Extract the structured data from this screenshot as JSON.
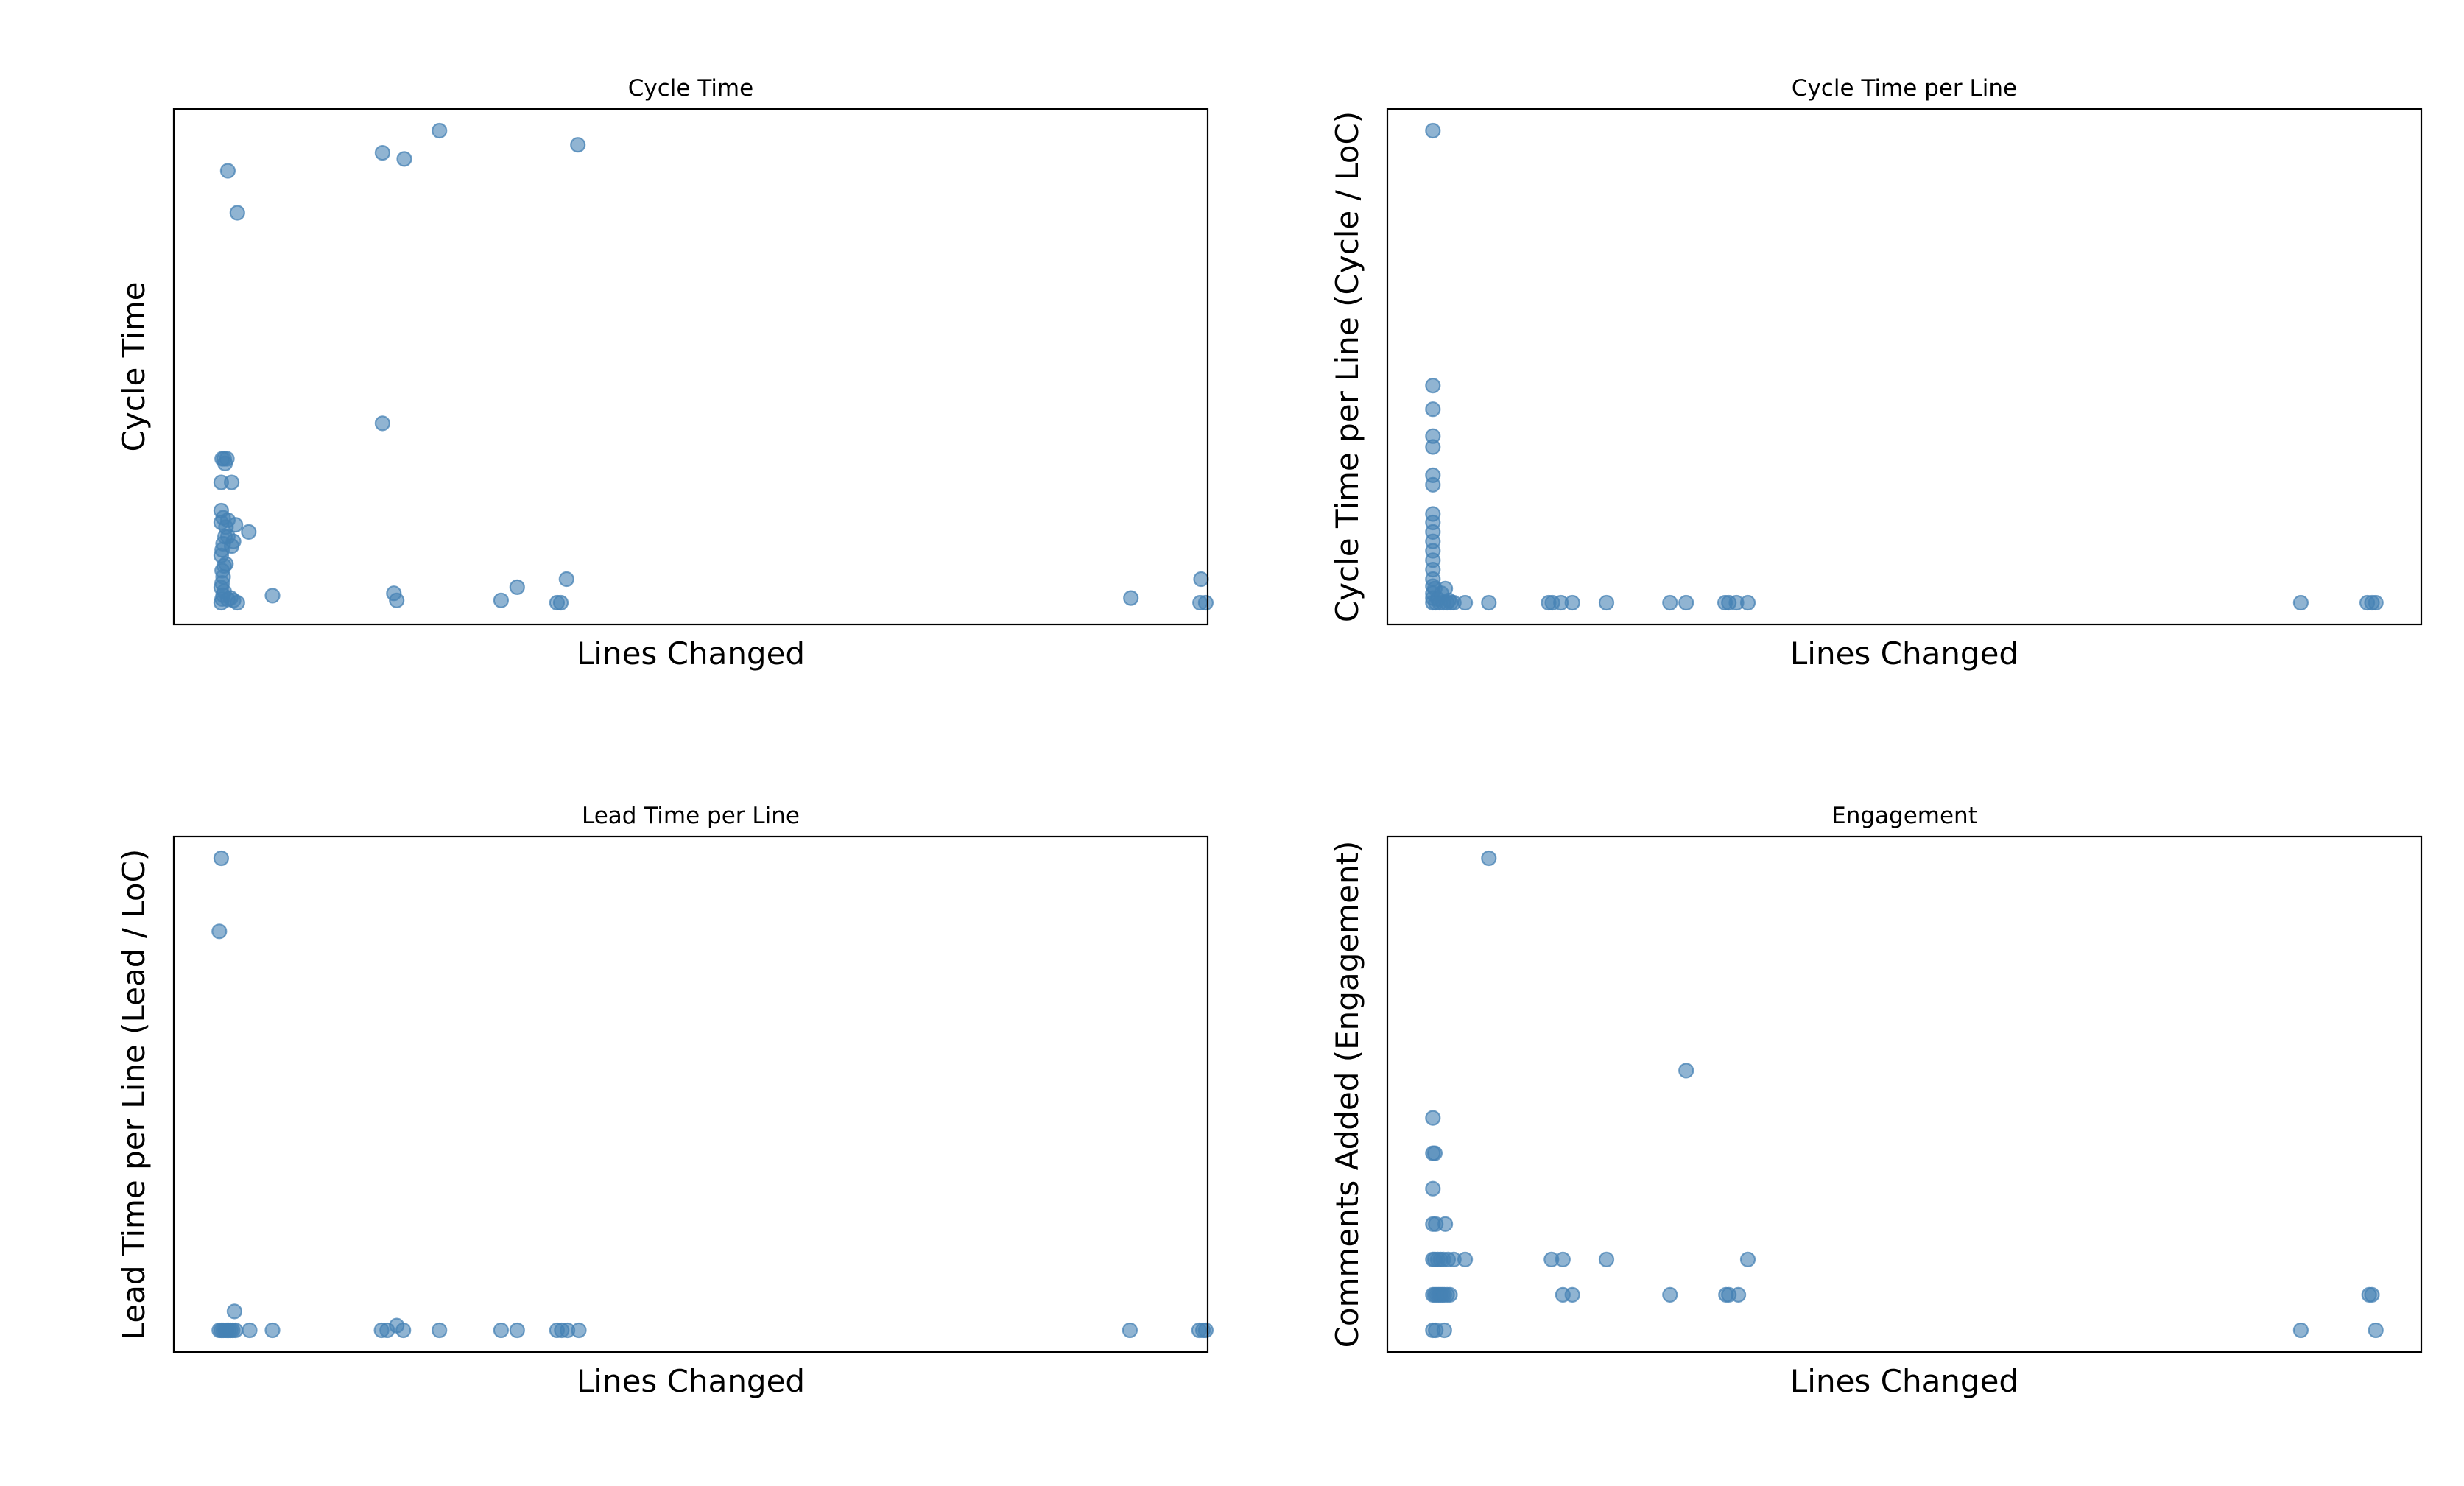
{
  "style": {
    "marker_fill": "#4682b4",
    "marker_opacity": 0.6,
    "frame_color": "#000000"
  },
  "chart_data": [
    {
      "type": "scatter",
      "title": "Cycle Time",
      "xlabel": "Lines Changed",
      "ylabel": "Cycle Time",
      "xlim": [
        -0.045,
        1.045
      ],
      "ylim": [
        -0.046,
        1.046
      ],
      "grid": false,
      "ticks": false,
      "points": [
        [
          0.005,
          0.0
        ],
        [
          0.006,
          0.008
        ],
        [
          0.007,
          0.016
        ],
        [
          0.008,
          0.024
        ],
        [
          0.005,
          0.032
        ],
        [
          0.006,
          0.042
        ],
        [
          0.007,
          0.055
        ],
        [
          0.006,
          0.068
        ],
        [
          0.008,
          0.078
        ],
        [
          0.01,
          0.082
        ],
        [
          0.005,
          0.1
        ],
        [
          0.006,
          0.112
        ],
        [
          0.007,
          0.125
        ],
        [
          0.009,
          0.14
        ],
        [
          0.012,
          0.14
        ],
        [
          0.018,
          0.13
        ],
        [
          0.016,
          0.12
        ],
        [
          0.01,
          0.16
        ],
        [
          0.005,
          0.17
        ],
        [
          0.007,
          0.18
        ],
        [
          0.012,
          0.175
        ],
        [
          0.02,
          0.165
        ],
        [
          0.005,
          0.255
        ],
        [
          0.006,
          0.305
        ],
        [
          0.008,
          0.305
        ],
        [
          0.009,
          0.295
        ],
        [
          0.011,
          0.305
        ],
        [
          0.005,
          0.195
        ],
        [
          0.016,
          0.255
        ],
        [
          0.012,
          0.007
        ],
        [
          0.018,
          0.005
        ],
        [
          0.015,
          0.01
        ],
        [
          0.022,
          0.0
        ],
        [
          0.034,
          0.15
        ],
        [
          0.059,
          0.015
        ],
        [
          0.012,
          0.915
        ],
        [
          0.022,
          0.826
        ],
        [
          0.175,
          0.38
        ],
        [
          0.175,
          0.953
        ],
        [
          0.198,
          0.94
        ],
        [
          0.235,
          1.0
        ],
        [
          0.381,
          0.97
        ],
        [
          0.187,
          0.02
        ],
        [
          0.19,
          0.005
        ],
        [
          0.3,
          0.005
        ],
        [
          0.317,
          0.033
        ],
        [
          0.359,
          0.0
        ],
        [
          0.363,
          0.0
        ],
        [
          0.369,
          0.05
        ],
        [
          0.964,
          0.01
        ],
        [
          1.038,
          0.05
        ],
        [
          1.037,
          0.0
        ],
        [
          1.043,
          0.0
        ]
      ]
    },
    {
      "type": "scatter",
      "title": "Cycle Time per Line",
      "xlabel": "Lines Changed",
      "ylabel": "Cycle Time per Line (Cycle /  LoC)",
      "xlim": [
        -0.045,
        1.045
      ],
      "ylim": [
        -0.046,
        1.046
      ],
      "grid": false,
      "ticks": false,
      "points": [
        [
          0.003,
          1.0
        ],
        [
          0.003,
          0.46
        ],
        [
          0.003,
          0.41
        ],
        [
          0.003,
          0.353
        ],
        [
          0.003,
          0.33
        ],
        [
          0.003,
          0.27
        ],
        [
          0.003,
          0.25
        ],
        [
          0.003,
          0.188
        ],
        [
          0.003,
          0.17
        ],
        [
          0.003,
          0.15
        ],
        [
          0.003,
          0.13
        ],
        [
          0.003,
          0.11
        ],
        [
          0.003,
          0.09
        ],
        [
          0.003,
          0.07
        ],
        [
          0.003,
          0.05
        ],
        [
          0.003,
          0.035
        ],
        [
          0.003,
          0.02
        ],
        [
          0.003,
          0.01
        ],
        [
          0.003,
          0.0
        ],
        [
          0.005,
          0.03
        ],
        [
          0.006,
          0.0
        ],
        [
          0.008,
          0.008
        ],
        [
          0.01,
          0.0
        ],
        [
          0.012,
          0.02
        ],
        [
          0.014,
          0.0
        ],
        [
          0.016,
          0.03
        ],
        [
          0.018,
          0.0
        ],
        [
          0.02,
          0.005
        ],
        [
          0.022,
          0.0
        ],
        [
          0.025,
          0.0
        ],
        [
          0.037,
          0.0
        ],
        [
          0.062,
          0.0
        ],
        [
          0.125,
          0.0
        ],
        [
          0.129,
          0.0
        ],
        [
          0.138,
          0.0
        ],
        [
          0.15,
          0.0
        ],
        [
          0.186,
          0.0
        ],
        [
          0.253,
          0.0
        ],
        [
          0.27,
          0.0
        ],
        [
          0.311,
          0.0
        ],
        [
          0.315,
          0.0
        ],
        [
          0.323,
          0.0
        ],
        [
          0.335,
          0.0
        ],
        [
          0.918,
          0.0
        ],
        [
          0.988,
          0.0
        ],
        [
          0.993,
          0.0
        ],
        [
          0.997,
          0.0
        ]
      ]
    },
    {
      "type": "scatter",
      "title": "Lead Time per Line",
      "xlabel": "Lines Changed",
      "ylabel": "Lead Time per Line (Lead /  LoC)",
      "xlim": [
        -0.045,
        1.045
      ],
      "ylim": [
        -0.046,
        1.046
      ],
      "grid": false,
      "ticks": false,
      "points": [
        [
          0.005,
          1.0
        ],
        [
          0.003,
          0.845
        ],
        [
          0.003,
          0.0
        ],
        [
          0.005,
          0.0
        ],
        [
          0.007,
          0.0
        ],
        [
          0.009,
          0.0
        ],
        [
          0.011,
          0.0
        ],
        [
          0.013,
          0.0
        ],
        [
          0.015,
          0.0
        ],
        [
          0.017,
          0.0
        ],
        [
          0.019,
          0.04
        ],
        [
          0.02,
          0.0
        ],
        [
          0.035,
          0.0
        ],
        [
          0.059,
          0.0
        ],
        [
          0.174,
          0.0
        ],
        [
          0.18,
          0.0
        ],
        [
          0.19,
          0.01
        ],
        [
          0.197,
          0.0
        ],
        [
          0.235,
          0.0
        ],
        [
          0.3,
          0.0
        ],
        [
          0.317,
          0.0
        ],
        [
          0.359,
          0.0
        ],
        [
          0.364,
          0.0
        ],
        [
          0.37,
          0.0
        ],
        [
          0.382,
          0.0
        ],
        [
          0.963,
          0.0
        ],
        [
          1.036,
          0.0
        ],
        [
          1.04,
          0.0
        ],
        [
          1.043,
          0.0
        ]
      ]
    },
    {
      "type": "scatter",
      "title": "Engagement",
      "xlabel": "Lines Changed",
      "ylabel": "Comments Added (Engagement)",
      "xlim": [
        -0.045,
        1.045
      ],
      "ylim": [
        -0.046,
        1.046
      ],
      "grid": false,
      "ticks": false,
      "points": [
        [
          0.062,
          1.0
        ],
        [
          0.003,
          0.0
        ],
        [
          0.006,
          0.0
        ],
        [
          0.015,
          0.0
        ],
        [
          0.003,
          0.075
        ],
        [
          0.005,
          0.075
        ],
        [
          0.007,
          0.075
        ],
        [
          0.009,
          0.075
        ],
        [
          0.011,
          0.075
        ],
        [
          0.013,
          0.075
        ],
        [
          0.015,
          0.075
        ],
        [
          0.018,
          0.075
        ],
        [
          0.021,
          0.075
        ],
        [
          0.003,
          0.15
        ],
        [
          0.005,
          0.15
        ],
        [
          0.008,
          0.15
        ],
        [
          0.011,
          0.15
        ],
        [
          0.014,
          0.15
        ],
        [
          0.019,
          0.15
        ],
        [
          0.025,
          0.15
        ],
        [
          0.037,
          0.15
        ],
        [
          0.003,
          0.225
        ],
        [
          0.006,
          0.225
        ],
        [
          0.016,
          0.225
        ],
        [
          0.003,
          0.3
        ],
        [
          0.003,
          0.375
        ],
        [
          0.005,
          0.375
        ],
        [
          0.003,
          0.45
        ],
        [
          0.128,
          0.15
        ],
        [
          0.14,
          0.15
        ],
        [
          0.186,
          0.15
        ],
        [
          0.335,
          0.15
        ],
        [
          0.14,
          0.075
        ],
        [
          0.15,
          0.075
        ],
        [
          0.27,
          0.55
        ],
        [
          0.253,
          0.075
        ],
        [
          0.315,
          0.075
        ],
        [
          0.312,
          0.075
        ],
        [
          0.325,
          0.075
        ],
        [
          0.918,
          0.0
        ],
        [
          0.997,
          0.0
        ],
        [
          0.99,
          0.075
        ],
        [
          0.993,
          0.075
        ]
      ]
    }
  ]
}
